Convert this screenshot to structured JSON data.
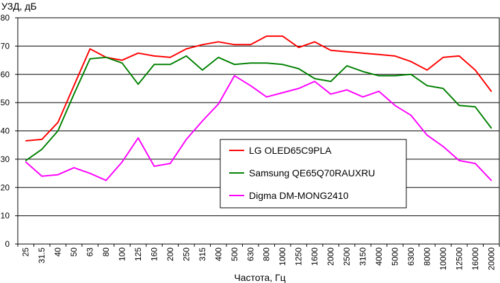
{
  "chart_data": {
    "type": "line",
    "title": "",
    "ylabel": "УЗД, дБ",
    "xlabel": "Частота, Гц",
    "ylim": [
      0,
      80
    ],
    "yticks": [
      0,
      10,
      20,
      30,
      40,
      50,
      60,
      70,
      80
    ],
    "grid": true,
    "legend_position": "center",
    "categories": [
      "25",
      "31.5",
      "40",
      "50",
      "63",
      "80",
      "100",
      "125",
      "160",
      "200",
      "250",
      "315",
      "400",
      "500",
      "630",
      "800",
      "1000",
      "1250",
      "1600",
      "2000",
      "2500",
      "3150",
      "4000",
      "5000",
      "6300",
      "8000",
      "10000",
      "12500",
      "16000",
      "20000"
    ],
    "series": [
      {
        "name": "LG OLED65C9PLA",
        "color": "#ff0000",
        "values": [
          36.5,
          37,
          43,
          56,
          69,
          66,
          65,
          67.5,
          66.5,
          66,
          69,
          70.5,
          71.5,
          70.5,
          70.5,
          73.5,
          73.5,
          69.5,
          71.5,
          68.5,
          68,
          67.5,
          67,
          66.5,
          64.5,
          61.5,
          66,
          66.5,
          61.5,
          54
        ]
      },
      {
        "name": "Samsung QE65Q70RAUXRU",
        "color": "#008000",
        "values": [
          29.5,
          33.5,
          40,
          53,
          65.5,
          66,
          64,
          56.5,
          63.5,
          63.5,
          66.5,
          61.5,
          66,
          63.5,
          64,
          64,
          63.5,
          62,
          58.5,
          57.5,
          63,
          61,
          59.5,
          59.5,
          60,
          56,
          55,
          49,
          48.5,
          41
        ]
      },
      {
        "name": "Digma DM-MONG2410",
        "color": "#ff00ff",
        "values": [
          29,
          24,
          24.5,
          27,
          25,
          22.5,
          29,
          37.5,
          27.5,
          28.5,
          37,
          43.5,
          49.5,
          59.5,
          56,
          52,
          53.5,
          55,
          57.5,
          53,
          54.5,
          52,
          54,
          49,
          45.5,
          38.5,
          34.5,
          29.5,
          28.5,
          22.5
        ]
      }
    ]
  }
}
